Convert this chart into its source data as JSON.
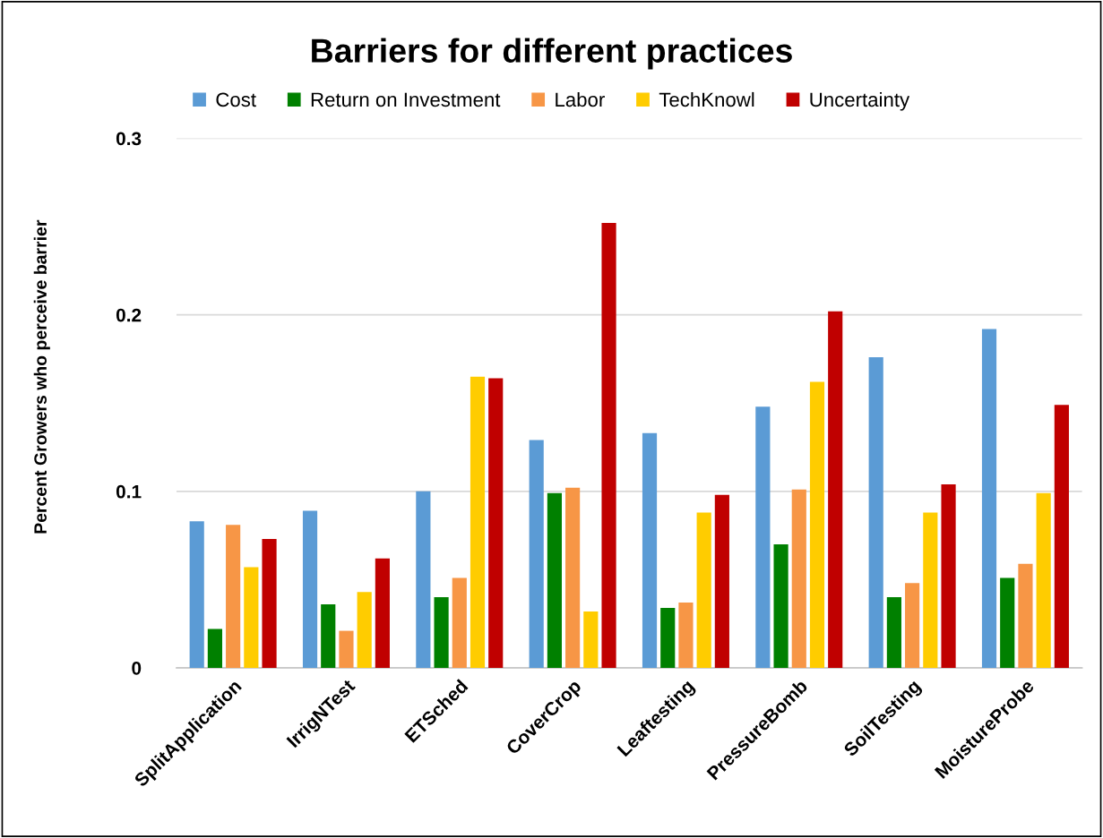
{
  "chart_data": {
    "type": "bar",
    "title": "Barriers for different practices",
    "ylabel": "Percent Growers who perceive barrier",
    "categories": [
      "SplitApplication",
      "IrrigNTest",
      "ETSched",
      "CoverCrop",
      "Leaftesting",
      "PressureBomb",
      "SoilTesting",
      "MoistureProbe"
    ],
    "series": [
      {
        "name": "Cost",
        "color": "#5b9bd5",
        "values": [
          0.083,
          0.089,
          0.1,
          0.129,
          0.133,
          0.148,
          0.176,
          0.192
        ]
      },
      {
        "name": "Return on Investment",
        "color": "#008000",
        "values": [
          0.022,
          0.036,
          0.04,
          0.099,
          0.034,
          0.07,
          0.04,
          0.051
        ]
      },
      {
        "name": "Labor",
        "color": "#f79646",
        "values": [
          0.081,
          0.021,
          0.051,
          0.102,
          0.037,
          0.101,
          0.048,
          0.059
        ]
      },
      {
        "name": "TechKnowl",
        "color": "#ffcc00",
        "values": [
          0.057,
          0.043,
          0.165,
          0.032,
          0.088,
          0.162,
          0.088,
          0.099
        ]
      },
      {
        "name": "Uncertainty",
        "color": "#c00000",
        "values": [
          0.073,
          0.062,
          0.164,
          0.252,
          0.098,
          0.202,
          0.104,
          0.149
        ]
      }
    ],
    "ylim": [
      0,
      0.3
    ],
    "yticks": [
      {
        "value": 0,
        "label": "0"
      },
      0.1,
      0.2,
      0.3
    ],
    "grid": "y",
    "legend": "top"
  }
}
